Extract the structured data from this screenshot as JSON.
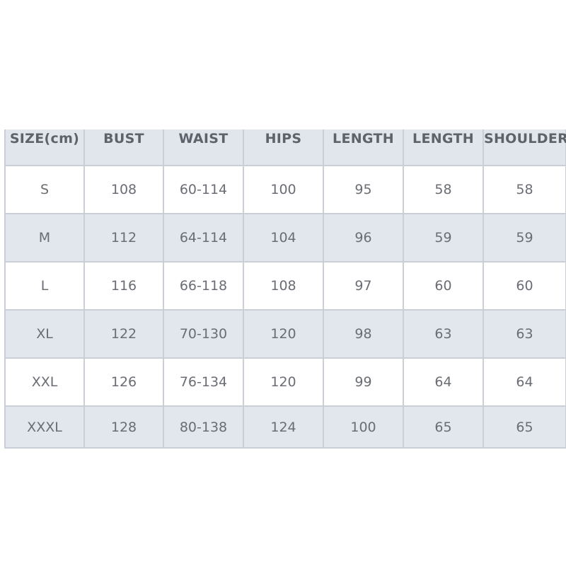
{
  "table": {
    "headers": [
      "SIZE(cm)",
      "BUST",
      "WAIST",
      "HIPS",
      "LENGTH",
      "LENGTH",
      "SHOULDER"
    ],
    "rows": [
      [
        "S",
        "108",
        "60-114",
        "100",
        "95",
        "58",
        "58"
      ],
      [
        "M",
        "112",
        "64-114",
        "104",
        "96",
        "59",
        "59"
      ],
      [
        "L",
        "116",
        "66-118",
        "108",
        "97",
        "60",
        "60"
      ],
      [
        "XL",
        "122",
        "70-130",
        "120",
        "98",
        "63",
        "63"
      ],
      [
        "XXL",
        "126",
        "76-134",
        "120",
        "99",
        "64",
        "64"
      ],
      [
        "XXXL",
        "128",
        "80-138",
        "124",
        "100",
        "65",
        "65"
      ]
    ]
  },
  "colors": {
    "header_bg": "#e1e5ec",
    "alt_row_bg": "#e2e6ed",
    "border": "#c9ced7",
    "text": "#6a6d73"
  }
}
